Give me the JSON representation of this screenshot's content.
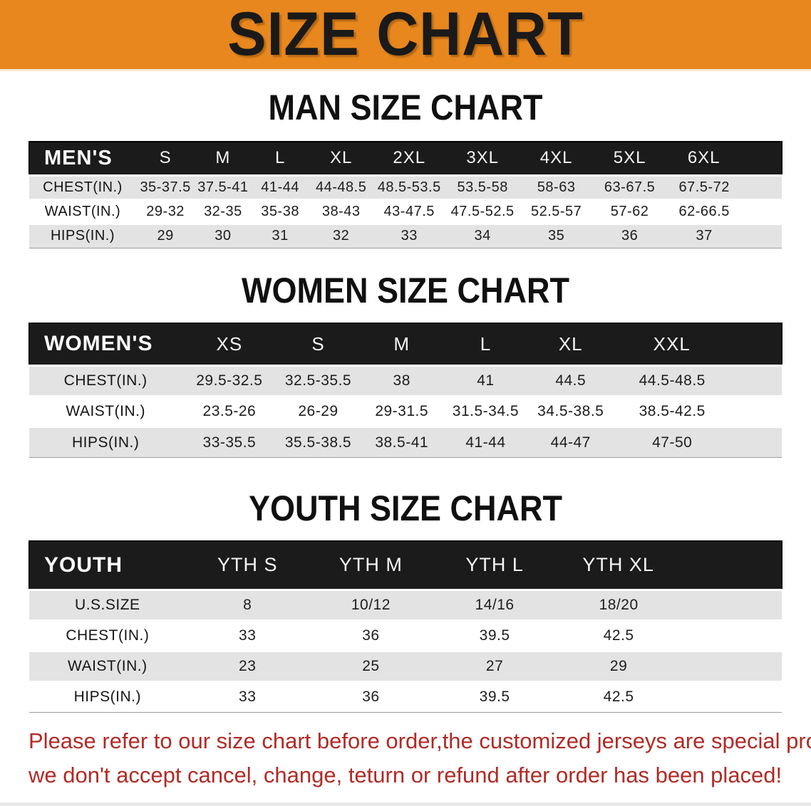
{
  "banner": {
    "title": "SIZE CHART",
    "background_color": "#E8871E",
    "text_color": "#1A1A1A"
  },
  "sections": [
    {
      "heading": "MAN SIZE CHART",
      "table": {
        "header_label": "MEN'S",
        "columns": [
          "S",
          "M",
          "L",
          "XL",
          "2XL",
          "3XL",
          "4XL",
          "5XL",
          "6XL"
        ],
        "rows": [
          {
            "label": "CHEST(IN.)",
            "values": [
              "35-37.5",
              "37.5-41",
              "41-44",
              "44-48.5",
              "48.5-53.5",
              "53.5-58",
              "58-63",
              "63-67.5",
              "67.5-72"
            ]
          },
          {
            "label": "WAIST(IN.)",
            "values": [
              "29-32",
              "32-35",
              "35-38",
              "38-43",
              "43-47.5",
              "47.5-52.5",
              "52.5-57",
              "57-62",
              "62-66.5"
            ]
          },
          {
            "label": "HIPS(IN.)",
            "values": [
              "29",
              "30",
              "31",
              "32",
              "33",
              "34",
              "35",
              "36",
              "37"
            ]
          }
        ]
      }
    },
    {
      "heading": "WOMEN SIZE CHART",
      "table": {
        "header_label": "WOMEN'S",
        "columns": [
          "XS",
          "S",
          "M",
          "L",
          "XL",
          "XXL"
        ],
        "rows": [
          {
            "label": "CHEST(IN.)",
            "values": [
              "29.5-32.5",
              "32.5-35.5",
              "38",
              "41",
              "44.5",
              "44.5-48.5"
            ]
          },
          {
            "label": "WAIST(IN.)",
            "values": [
              "23.5-26",
              "26-29",
              "29-31.5",
              "31.5-34.5",
              "34.5-38.5",
              "38.5-42.5"
            ]
          },
          {
            "label": "HIPS(IN.)",
            "values": [
              "33-35.5",
              "35.5-38.5",
              "38.5-41",
              "41-44",
              "44-47",
              "47-50"
            ]
          }
        ]
      }
    },
    {
      "heading": "YOUTH SIZE CHART",
      "table": {
        "header_label": "YOUTH",
        "columns": [
          "YTH S",
          "YTH M",
          "YTH L",
          "YTH XL"
        ],
        "rows": [
          {
            "label": "U.S.SIZE",
            "values": [
              "8",
              "10/12",
              "14/16",
              "18/20"
            ]
          },
          {
            "label": "CHEST(IN.)",
            "values": [
              "33",
              "36",
              "39.5",
              "42.5"
            ]
          },
          {
            "label": "WAIST(IN.)",
            "values": [
              "23",
              "25",
              "27",
              "29"
            ]
          },
          {
            "label": "HIPS(IN.)",
            "values": [
              "33",
              "36",
              "39.5",
              "42.5"
            ]
          }
        ]
      }
    }
  ],
  "disclaimer": {
    "line1": "Please refer to our size chart before order,the customized jerseys are special products,",
    "line2": "we don't accept cancel, change, teturn or refund after order has been placed!",
    "text_color": "#B22A25"
  }
}
